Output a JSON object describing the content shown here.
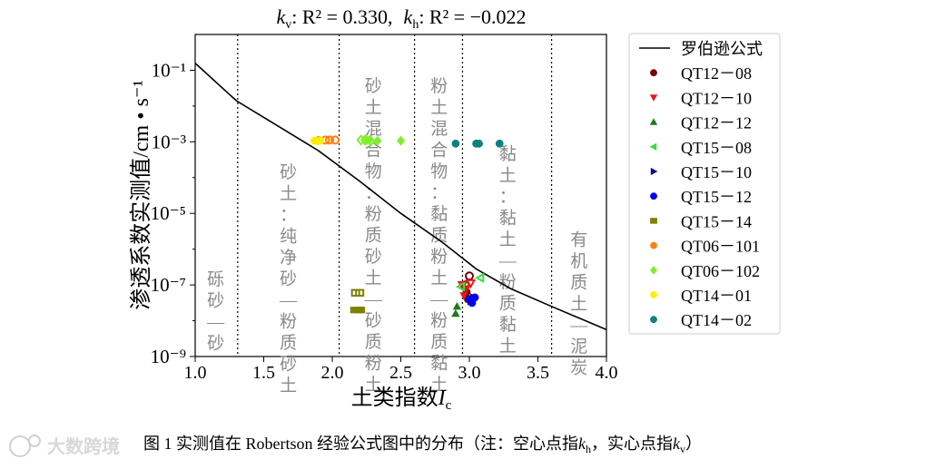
{
  "chart_data": {
    "type": "scatter",
    "title": {
      "kv_label": "k",
      "kv_sub": "v",
      "kv_r2": ": R² = 0.330,",
      "kh_label": "k",
      "kh_sub": "h",
      "kh_r2": ": R² = −0.022"
    },
    "xlabel": {
      "main": "土类指数",
      "var": "I",
      "sub": "c"
    },
    "ylabel": "渗透系数实测值/cm • s⁻¹",
    "xlim": [
      1.0,
      4.0
    ],
    "ylim_log10": [
      -9,
      0
    ],
    "x_ticks": [
      1.0,
      1.5,
      2.0,
      2.5,
      3.0,
      3.5,
      4.0
    ],
    "x_tick_labels": [
      "1.0",
      "1.5",
      "2.0",
      "2.5",
      "3.0",
      "3.5",
      "4.0"
    ],
    "y_ticks": [
      -1,
      -3,
      -5,
      -7,
      -9
    ],
    "y_tick_labels": [
      "10⁻¹",
      "10⁻³",
      "10⁻⁵",
      "10⁻⁷",
      "10⁻⁹"
    ],
    "zone_boundaries": [
      1.31,
      2.05,
      2.6,
      2.95,
      3.6
    ],
    "zones": [
      {
        "center": 1.15,
        "top": -7.0,
        "text": "砾砂—砂"
      },
      {
        "center": 1.68,
        "top": -4.0,
        "text": "砂土：纯净砂—粉质砂土"
      },
      {
        "center": 2.3,
        "top": -1.6,
        "text": "砂土混合物：粉质砂土—砂质粉土"
      },
      {
        "center": 2.78,
        "top": -1.6,
        "text": "粉土混合物：黏质粉土—粉质黏土"
      },
      {
        "center": 3.28,
        "top": -3.5,
        "text": "黏土：黏土—粉质黏土"
      },
      {
        "center": 3.8,
        "top": -5.9,
        "text": "有机质土—泥炭"
      }
    ],
    "robertson_curve": {
      "name": "罗伯逊公式",
      "x": [
        1.0,
        1.3,
        1.6,
        1.9,
        2.2,
        2.5,
        2.8,
        3.05,
        3.3,
        3.6,
        4.0
      ],
      "log10_y": [
        -0.8,
        -1.85,
        -2.55,
        -3.25,
        -4.1,
        -5.0,
        -5.8,
        -6.55,
        -7.1,
        -7.6,
        -8.25
      ]
    },
    "series": [
      {
        "name": "QT12－08",
        "color": "#7b0000",
        "marker": "circle",
        "kv": [
          [
            2.98,
            -7.2
          ],
          [
            2.99,
            -7.4
          ]
        ],
        "kh": [
          [
            3.0,
            -6.75
          ],
          [
            2.97,
            -7.0
          ]
        ]
      },
      {
        "name": "QT12－10",
        "color": "#e31a1c",
        "marker": "tri-down",
        "kv": [
          [
            2.96,
            -7.3
          ],
          [
            2.98,
            -7.1
          ]
        ],
        "kh": [
          [
            2.95,
            -7.0
          ],
          [
            3.01,
            -6.95
          ]
        ]
      },
      {
        "name": "QT12－12",
        "color": "#1a7a1a",
        "marker": "tri-up",
        "kv": [
          [
            2.9,
            -7.8
          ],
          [
            2.91,
            -7.6
          ]
        ],
        "kh": []
      },
      {
        "name": "QT15－08",
        "color": "#3ddc3d",
        "marker": "tri-left",
        "kv": [],
        "kh": [
          [
            3.08,
            -6.8
          ],
          [
            2.94,
            -7.05
          ]
        ]
      },
      {
        "name": "QT15－10",
        "color": "#0a0a8a",
        "marker": "tri-right",
        "kv": [
          [
            3.03,
            -7.35
          ],
          [
            3.01,
            -7.45
          ]
        ],
        "kh": []
      },
      {
        "name": "QT15－12",
        "color": "#0000ee",
        "marker": "circle",
        "kv": [
          [
            3.02,
            -7.5
          ],
          [
            3.04,
            -7.35
          ],
          [
            3.0,
            -7.4
          ]
        ],
        "kh": []
      },
      {
        "name": "QT15－14",
        "color": "#808000",
        "marker": "square",
        "kv": [
          [
            2.16,
            -7.7
          ],
          [
            2.19,
            -7.7
          ],
          [
            2.21,
            -7.7
          ]
        ],
        "kh": [
          [
            2.17,
            -7.22
          ],
          [
            2.2,
            -7.22
          ]
        ]
      },
      {
        "name": "QT06－101",
        "color": "#ff7f0e",
        "marker": "circle",
        "kv": [
          [
            1.9,
            -2.95
          ]
        ],
        "kh": [
          [
            1.95,
            -2.95
          ],
          [
            1.98,
            -2.95
          ],
          [
            2.02,
            -2.95
          ]
        ]
      },
      {
        "name": "QT06－102",
        "color": "#7fee2c",
        "marker": "diamond",
        "kv": [
          [
            2.25,
            -2.95
          ],
          [
            2.27,
            -2.95
          ],
          [
            2.33,
            -2.97
          ],
          [
            2.5,
            -2.97
          ]
        ],
        "kh": [
          [
            2.21,
            -2.95
          ],
          [
            2.24,
            -2.95
          ],
          [
            2.28,
            -2.98
          ]
        ]
      },
      {
        "name": "QT14－01",
        "color": "#ffee00",
        "marker": "circle",
        "kv": [
          [
            1.87,
            -2.97
          ],
          [
            1.89,
            -2.98
          ],
          [
            1.91,
            -2.97
          ]
        ],
        "kh": []
      },
      {
        "name": "QT14－02",
        "color": "#0f8080",
        "marker": "circle",
        "kv": [
          [
            2.9,
            -3.05
          ],
          [
            3.22,
            -3.05
          ],
          [
            3.05,
            -3.05
          ],
          [
            3.07,
            -3.05
          ]
        ],
        "kh": []
      }
    ],
    "legend_position": "right"
  },
  "caption": {
    "prefix": "图 1  实测值在 Robertson 经验公式图中的分布（注：空心点指",
    "k1": "k",
    "k1sub": "h",
    "mid": "，实心点指",
    "k2": "k",
    "k2sub": "v",
    "suffix": "）"
  },
  "watermark": {
    "text": "大数跨境"
  }
}
